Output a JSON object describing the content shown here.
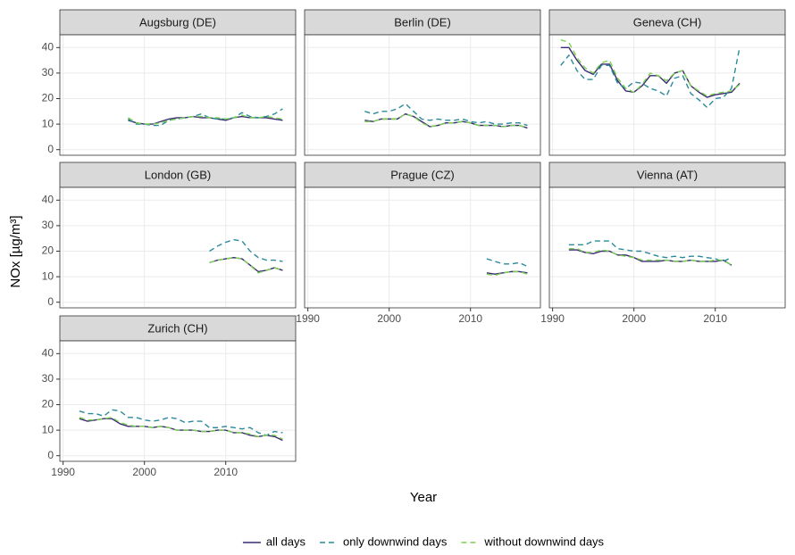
{
  "chart_data": {
    "type": "line",
    "xlabel": "Year",
    "ylabel": "NOx [µg/m³]",
    "xlim": [
      1989.6,
      2018.6
    ],
    "ylim": [
      -2.2,
      45
    ],
    "xticks": [
      1990,
      2000,
      2010
    ],
    "yticks": [
      0,
      10,
      20,
      30,
      40
    ],
    "grid": true,
    "legend": "bottom",
    "series": [
      {
        "name": "all days",
        "color": "#3b2a73",
        "dashed": false
      },
      {
        "name": "only downwind days",
        "color": "#2a8a9a",
        "dashed": true
      },
      {
        "name": "without downwind days",
        "color": "#7ad151",
        "dashed": true
      }
    ],
    "panels": [
      {
        "title": "Augsburg (DE)",
        "x": [
          1998,
          1999,
          2000,
          2001,
          2002,
          2003,
          2004,
          2005,
          2006,
          2007,
          2008,
          2009,
          2010,
          2011,
          2012,
          2013,
          2014,
          2015,
          2016,
          2017
        ],
        "values": [
          [
            11.5,
            10.5,
            10,
            10,
            11,
            12,
            12.5,
            12.5,
            13,
            12.5,
            12.5,
            12,
            11.5,
            12.5,
            13,
            12.5,
            12.5,
            12.5,
            12,
            11.5
          ],
          [
            12,
            10,
            10,
            9.5,
            9.5,
            11.5,
            12,
            12.5,
            13,
            14,
            12.5,
            12,
            12,
            12.5,
            14.5,
            13,
            12.5,
            13,
            14,
            16
          ],
          [
            12.5,
            10.5,
            10,
            10,
            10.5,
            11.5,
            12,
            12.5,
            13,
            13,
            12.5,
            12.5,
            12,
            12.5,
            13.5,
            12.5,
            12.5,
            13,
            12.5,
            12
          ]
        ]
      },
      {
        "title": "Berlin (DE)",
        "x": [
          1997,
          1998,
          1999,
          2000,
          2001,
          2002,
          2003,
          2004,
          2005,
          2006,
          2007,
          2008,
          2009,
          2010,
          2011,
          2012,
          2013,
          2014,
          2015,
          2016,
          2017
        ],
        "values": [
          [
            11.5,
            11,
            12,
            12,
            12,
            14,
            13,
            11,
            9,
            9.5,
            10.5,
            10.5,
            11,
            10.5,
            9.5,
            9.5,
            9.5,
            9,
            9.5,
            9.5,
            8.5
          ],
          [
            15,
            14,
            15,
            15,
            16,
            18,
            15,
            12,
            11.5,
            12,
            11.5,
            11.5,
            12,
            11,
            10.5,
            11,
            10,
            10,
            10.5,
            10.5,
            9.5
          ],
          [
            11,
            11,
            12,
            12,
            12,
            14,
            13,
            10.5,
            9,
            9.5,
            10.5,
            10.5,
            11,
            10.5,
            9.5,
            9.5,
            9.5,
            9,
            9.5,
            9.5,
            8.5
          ]
        ]
      },
      {
        "title": "Geneva (CH)",
        "x": [
          1991,
          1992,
          1993,
          1994,
          1995,
          1996,
          1997,
          1998,
          1999,
          2000,
          2001,
          2002,
          2003,
          2004,
          2005,
          2006,
          2007,
          2008,
          2009,
          2010,
          2011,
          2012,
          2013
        ],
        "values": [
          [
            40,
            40,
            35,
            31,
            29.5,
            33.5,
            33.5,
            27,
            23,
            22.5,
            25,
            29,
            29,
            26,
            30,
            31,
            25,
            22.5,
            20.5,
            21.5,
            22,
            22.5,
            26
          ],
          [
            33,
            37,
            31,
            27.5,
            27.5,
            33,
            33,
            26,
            24,
            26.5,
            26,
            24,
            23,
            21,
            28,
            29,
            22,
            19.5,
            16.5,
            20,
            20.5,
            24,
            40
          ],
          [
            43,
            42,
            36,
            32,
            30,
            34,
            35,
            28,
            24,
            22.5,
            25.5,
            30,
            29,
            27,
            30,
            31,
            25,
            23,
            21,
            22,
            22.5,
            23,
            25.5
          ]
        ]
      },
      {
        "title": "London (GB)",
        "x": [
          2008,
          2009,
          2010,
          2011,
          2012,
          2013,
          2014,
          2015,
          2016,
          2017
        ],
        "values": [
          [
            15.5,
            16.5,
            17,
            17.5,
            17,
            14.5,
            12,
            12.5,
            13.5,
            12.5
          ],
          [
            20,
            22,
            23.5,
            24.5,
            24,
            20,
            17.5,
            16.5,
            16.5,
            16
          ],
          [
            15.5,
            16.5,
            17,
            17.5,
            17,
            14.5,
            11.5,
            12.5,
            13.5,
            12.5
          ]
        ]
      },
      {
        "title": "Prague (CZ)",
        "x": [
          2012,
          2013,
          2014,
          2015,
          2016,
          2017
        ],
        "values": [
          [
            11.5,
            11,
            11.5,
            12,
            12,
            11.5
          ],
          [
            17,
            16,
            15,
            15,
            15.5,
            14
          ],
          [
            11,
            10.5,
            11.5,
            12,
            12,
            11
          ]
        ]
      },
      {
        "title": "Vienna (AT)",
        "x": [
          1992,
          1993,
          1994,
          1995,
          1996,
          1997,
          1998,
          1999,
          2000,
          2001,
          2002,
          2003,
          2004,
          2005,
          2006,
          2007,
          2008,
          2009,
          2010,
          2011,
          2012
        ],
        "values": [
          [
            20.5,
            20.5,
            19.5,
            19,
            20,
            20,
            18.5,
            18.5,
            17.5,
            16,
            16,
            16,
            16.5,
            16,
            16,
            16.5,
            16,
            16,
            16,
            16.5,
            14.5
          ],
          [
            22.5,
            22.5,
            22.5,
            24,
            24,
            24,
            21,
            20.5,
            20,
            20,
            19,
            18,
            17.5,
            18,
            17.5,
            18,
            18,
            17.5,
            17,
            16,
            17.5
          ],
          [
            21,
            21,
            19.5,
            19.5,
            20.5,
            20,
            18.5,
            18,
            17.5,
            16.5,
            16.5,
            16.5,
            16.5,
            16,
            16,
            16.5,
            16,
            16,
            16.5,
            16.5,
            14.5
          ]
        ]
      },
      {
        "title": "Zurich (CH)",
        "x": [
          1992,
          1993,
          1994,
          1995,
          1996,
          1997,
          1998,
          1999,
          2000,
          2001,
          2002,
          2003,
          2004,
          2005,
          2006,
          2007,
          2008,
          2009,
          2010,
          2011,
          2012,
          2013,
          2014,
          2015,
          2016,
          2017
        ],
        "values": [
          [
            14.5,
            13.5,
            14,
            14.5,
            14.5,
            12.5,
            11.5,
            11.5,
            11.5,
            11,
            11.5,
            11,
            10,
            10,
            10,
            9.5,
            9.5,
            10,
            10,
            9,
            9,
            8,
            7.5,
            8,
            7.5,
            6
          ],
          [
            17.5,
            16.5,
            16.5,
            15.5,
            18,
            17.5,
            15,
            15,
            14,
            13.5,
            14,
            15,
            14.5,
            13,
            13.5,
            13.5,
            11,
            11,
            11.5,
            11,
            10.5,
            11,
            9,
            8,
            9.5,
            9
          ],
          [
            15,
            14,
            14,
            14.5,
            15,
            13,
            12,
            11.5,
            11.5,
            11,
            11.5,
            11,
            10,
            10,
            10,
            9.5,
            9.5,
            10,
            10,
            9,
            9,
            8.5,
            7.5,
            8,
            8,
            6.5
          ]
        ]
      }
    ]
  }
}
